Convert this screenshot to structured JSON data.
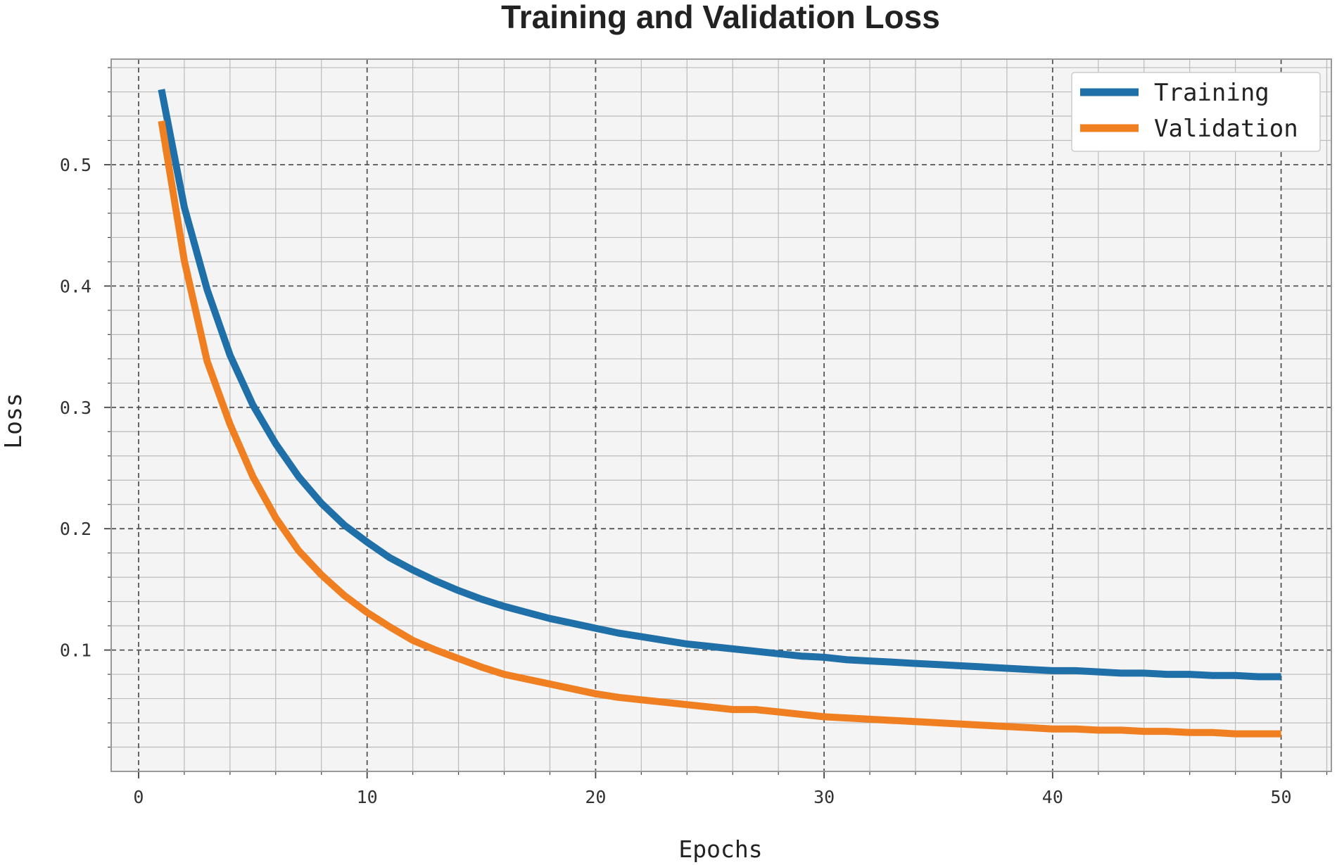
{
  "colors": {
    "training": "#1f6fa8",
    "validation": "#f07f22",
    "grid_major": "#555555",
    "grid_minor": "#bbbbbb",
    "frame": "#999999"
  },
  "chart_data": {
    "type": "line",
    "title": "Training and Validation Loss",
    "xlabel": "Epochs",
    "ylabel": "Loss",
    "xlim": [
      -1.2,
      52.2
    ],
    "ylim": [
      0.0,
      0.587
    ],
    "xticks": [
      0,
      10,
      20,
      30,
      40,
      50
    ],
    "xtick_labels": [
      "0",
      "10",
      "20",
      "30",
      "40",
      "50"
    ],
    "yticks": [
      0.1,
      0.2,
      0.3,
      0.4,
      0.5
    ],
    "ytick_labels": [
      "0.1",
      "0.2",
      "0.3",
      "0.4",
      "0.5"
    ],
    "grid": true,
    "legend_position": "top-right",
    "x": [
      1,
      2,
      3,
      4,
      5,
      6,
      7,
      8,
      9,
      10,
      11,
      12,
      13,
      14,
      15,
      16,
      17,
      18,
      19,
      20,
      21,
      22,
      23,
      24,
      25,
      26,
      27,
      28,
      29,
      30,
      31,
      32,
      33,
      34,
      35,
      36,
      37,
      38,
      39,
      40,
      41,
      42,
      43,
      44,
      45,
      46,
      47,
      48,
      49,
      50
    ],
    "series": [
      {
        "name": "Training",
        "values": [
          0.562,
          0.465,
          0.397,
          0.343,
          0.302,
          0.27,
          0.243,
          0.221,
          0.203,
          0.189,
          0.176,
          0.166,
          0.157,
          0.149,
          0.142,
          0.136,
          0.131,
          0.126,
          0.122,
          0.118,
          0.114,
          0.111,
          0.108,
          0.105,
          0.103,
          0.101,
          0.099,
          0.097,
          0.095,
          0.094,
          0.092,
          0.091,
          0.09,
          0.089,
          0.088,
          0.087,
          0.086,
          0.085,
          0.084,
          0.083,
          0.083,
          0.082,
          0.081,
          0.081,
          0.08,
          0.08,
          0.079,
          0.079,
          0.078,
          0.078
        ]
      },
      {
        "name": "Validation",
        "values": [
          0.536,
          0.421,
          0.338,
          0.286,
          0.243,
          0.209,
          0.182,
          0.162,
          0.145,
          0.131,
          0.119,
          0.108,
          0.1,
          0.093,
          0.086,
          0.08,
          0.076,
          0.072,
          0.068,
          0.064,
          0.061,
          0.059,
          0.057,
          0.055,
          0.053,
          0.051,
          0.051,
          0.049,
          0.047,
          0.045,
          0.044,
          0.043,
          0.042,
          0.041,
          0.04,
          0.039,
          0.038,
          0.037,
          0.036,
          0.035,
          0.035,
          0.034,
          0.034,
          0.033,
          0.033,
          0.032,
          0.032,
          0.031,
          0.031,
          0.031
        ]
      }
    ]
  }
}
